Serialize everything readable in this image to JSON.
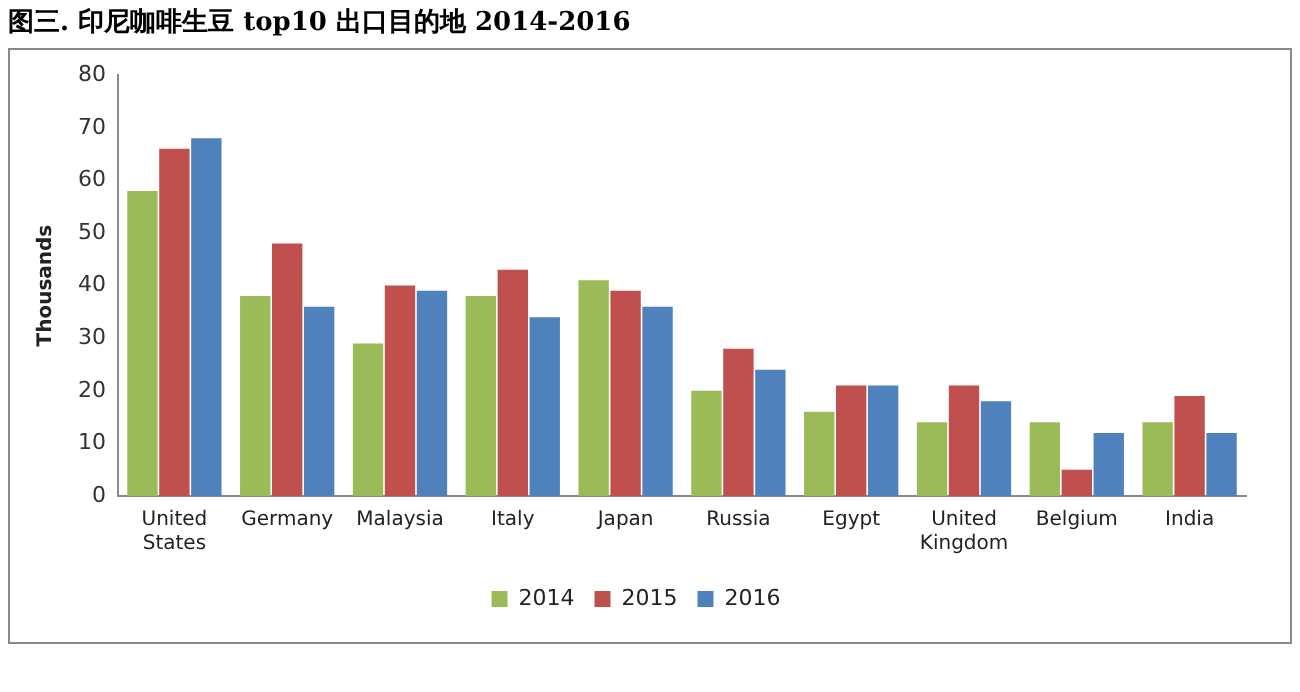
{
  "chart_data": {
    "type": "bar",
    "title": "图三. 印尼咖啡生豆 top10 出口目的地  2014-2016",
    "ylabel": "Thousands",
    "categories": [
      "United States",
      "Germany",
      "Malaysia",
      "Italy",
      "Japan",
      "Russia",
      "Egypt",
      "United Kingdom",
      "Belgium",
      "India"
    ],
    "series": [
      {
        "name": "2014",
        "color": "#9bbb59",
        "values": [
          58,
          38,
          29,
          38,
          41,
          20,
          16,
          14,
          14,
          14
        ]
      },
      {
        "name": "2015",
        "color": "#c0504d",
        "values": [
          66,
          48,
          40,
          43,
          39,
          28,
          21,
          21,
          5,
          19
        ]
      },
      {
        "name": "2016",
        "color": "#4f81bd",
        "values": [
          68,
          36,
          39,
          34,
          36,
          24,
          21,
          18,
          12,
          12
        ]
      }
    ],
    "ylim": [
      0,
      80
    ],
    "yticks": [
      0,
      10,
      20,
      30,
      40,
      50,
      60,
      70,
      80
    ],
    "grid": false,
    "legend": "bottom"
  }
}
